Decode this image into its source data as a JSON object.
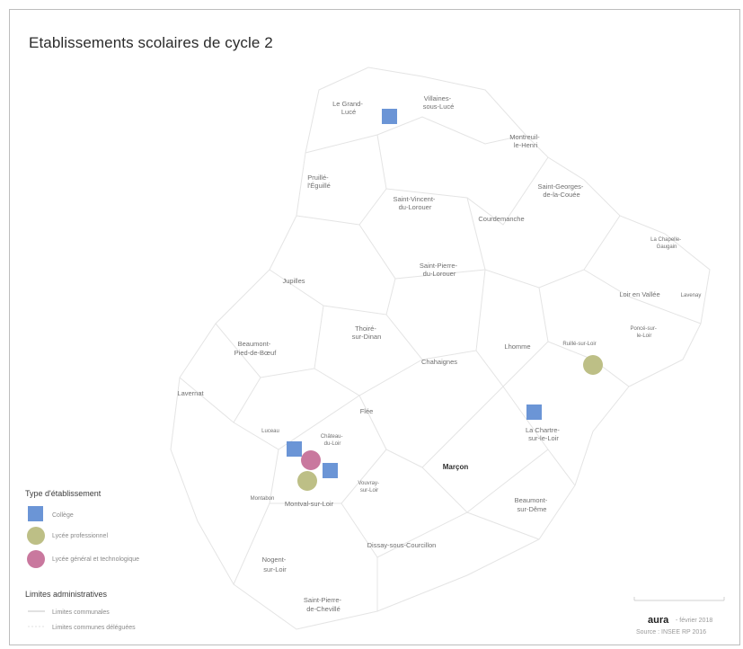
{
  "title": "Etablissements scolaires de cycle 2",
  "colors": {
    "college": "#6b95d6",
    "lycee_pro": "#bdbf86",
    "lycee_gt": "#c9789e",
    "boundary": "#e4e4e4"
  },
  "communes": [
    {
      "id": "le-grand-luce",
      "lines": [
        "Le Grand-",
        "Lucé"
      ]
    },
    {
      "id": "villaines-sous-luce",
      "lines": [
        "Villaines-",
        "sous-Lucé"
      ]
    },
    {
      "id": "montreuil-le-henri",
      "lines": [
        "Montreuil-",
        "le-Henri"
      ]
    },
    {
      "id": "pruille-l-eguille",
      "lines": [
        "Pruillé-",
        "l'Éguillé"
      ]
    },
    {
      "id": "saint-vincent-du-lorouer",
      "lines": [
        "Saint-Vincent-",
        "du-Lorouer"
      ]
    },
    {
      "id": "saint-georges-de-la-couee",
      "lines": [
        "Saint-Georges-",
        "de-la-Couée"
      ]
    },
    {
      "id": "courdemanche",
      "lines": [
        "Courdemanche"
      ]
    },
    {
      "id": "la-chapelle-gaugain",
      "lines": [
        "La Chapelle-",
        "Gaugain"
      ]
    },
    {
      "id": "saint-pierre-du-lorouer",
      "lines": [
        "Saint-Pierre-",
        "du-Lorouer"
      ]
    },
    {
      "id": "jupilles",
      "lines": [
        "Jupilles"
      ]
    },
    {
      "id": "loir-en-vallee",
      "lines": [
        "Loir en Vallée"
      ]
    },
    {
      "id": "lavenay",
      "lines": [
        "Lavenay"
      ]
    },
    {
      "id": "poncé-sur-le-loir",
      "lines": [
        "Poncé-sur-",
        "le-Loir"
      ]
    },
    {
      "id": "thoire-sur-dinan",
      "lines": [
        "Thoiré-",
        "sur-Dinan"
      ]
    },
    {
      "id": "beaumont-pied-de-boeuf",
      "lines": [
        "Beaumont-",
        "Pied-de-Bœuf"
      ]
    },
    {
      "id": "lhomme",
      "lines": [
        "Lhomme"
      ]
    },
    {
      "id": "ruille-sur-loir",
      "lines": [
        "Ruillé-sur-Loir"
      ]
    },
    {
      "id": "chahaignes",
      "lines": [
        "Chahaignes"
      ]
    },
    {
      "id": "lavernat",
      "lines": [
        "Lavernat"
      ]
    },
    {
      "id": "flee",
      "lines": [
        "Flée"
      ]
    },
    {
      "id": "la-chartre-sur-le-loir",
      "lines": [
        "La Chartre-",
        "sur-le-Loir"
      ]
    },
    {
      "id": "luceau",
      "lines": [
        "Luceau"
      ]
    },
    {
      "id": "chateau-du-loir",
      "lines": [
        "Château-",
        "du-Loir"
      ]
    },
    {
      "id": "marcon",
      "lines": [
        "Marçon"
      ]
    },
    {
      "id": "vouvray-sur-loir",
      "lines": [
        "Vouvray-",
        "sur-Loir"
      ]
    },
    {
      "id": "montabon",
      "lines": [
        "Montabon"
      ]
    },
    {
      "id": "montval-sur-loir",
      "lines": [
        "Montval-sur-Loir"
      ]
    },
    {
      "id": "beaumont-sur-dême",
      "lines": [
        "Beaumont-",
        "sur-Dême"
      ]
    },
    {
      "id": "dissay-sous-courcillon",
      "lines": [
        "Dissay-sous-Courcillon"
      ]
    },
    {
      "id": "nogent-sur-loir",
      "lines": [
        "Nogent-",
        "sur-Loir"
      ]
    },
    {
      "id": "saint-pierre-de-chevillé",
      "lines": [
        "Saint-Pierre-",
        "de-Chevillé"
      ]
    }
  ],
  "establishments": [
    {
      "type": "college",
      "shape": "square"
    },
    {
      "type": "college",
      "shape": "square"
    },
    {
      "type": "college",
      "shape": "square"
    },
    {
      "type": "college",
      "shape": "square"
    },
    {
      "type": "lycee_gt",
      "shape": "circle"
    },
    {
      "type": "lycee_pro",
      "shape": "circle"
    },
    {
      "type": "lycee_pro",
      "shape": "circle"
    }
  ],
  "legend": {
    "type_heading": "Type d'établissement",
    "college_label": "Collège",
    "lycee_pro_label": "Lycée professionnel",
    "lycee_gt_label": "Lycée général et technologique",
    "limits_heading": "Limites administratives",
    "limit_communal_label": "Limites communales",
    "limit_delegated_label": "Limites communes déléguées"
  },
  "credits": {
    "brand": "aura",
    "year_line": "- février 2018",
    "source_line": "Source : INSEE RP 2016"
  }
}
